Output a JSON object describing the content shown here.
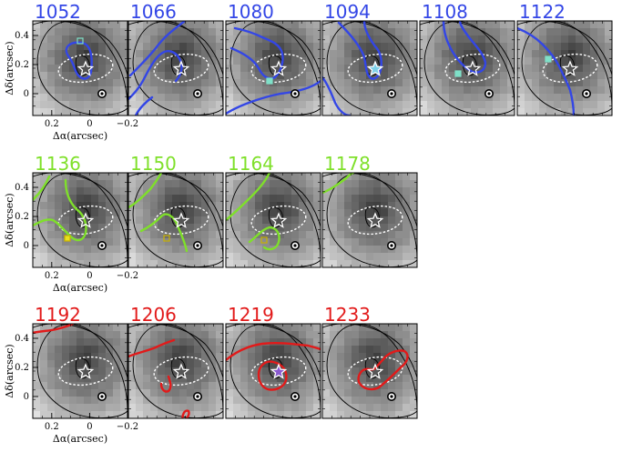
{
  "figure": {
    "x_axis_label": "Δα(arcsec)",
    "y_axis_label": "Δδ(arcsec)",
    "x_ticks": [
      "0.2",
      "0",
      "−0.2"
    ],
    "y_ticks": [
      "0",
      "0.2",
      "0.4"
    ],
    "colors": {
      "blue": "#3346e6",
      "green": "#7fe02a",
      "red": "#e21a1a",
      "star_cyan": "#7fd0e8",
      "star_violet": "#8a5ad0",
      "square_cyan": "#7fe0c8",
      "square_yellow": "#e8e020"
    }
  },
  "chart_data": [
    {
      "type": "heatmap",
      "velocity": "1052",
      "group": "blue",
      "marker": "square_cyan_open",
      "star_fill": "none"
    },
    {
      "type": "heatmap",
      "velocity": "1066",
      "group": "blue",
      "marker": "none",
      "star_fill": "none"
    },
    {
      "type": "heatmap",
      "velocity": "1080",
      "group": "blue",
      "marker": "square_cyan_filled",
      "star_fill": "none"
    },
    {
      "type": "heatmap",
      "velocity": "1094",
      "group": "blue",
      "marker": "none",
      "star_fill": "cyan"
    },
    {
      "type": "heatmap",
      "velocity": "1108",
      "group": "blue",
      "marker": "square_cyan_filled",
      "star_fill": "none"
    },
    {
      "type": "heatmap",
      "velocity": "1122",
      "group": "blue",
      "marker": "square_cyan_filled",
      "star_fill": "none"
    },
    {
      "type": "heatmap",
      "velocity": "1136",
      "group": "green",
      "marker": "square_yellow_filled",
      "star_fill": "none"
    },
    {
      "type": "heatmap",
      "velocity": "1150",
      "group": "green",
      "marker": "square_yellow_open",
      "star_fill": "none"
    },
    {
      "type": "heatmap",
      "velocity": "1164",
      "group": "green",
      "marker": "square_yellow_open",
      "star_fill": "none"
    },
    {
      "type": "heatmap",
      "velocity": "1178",
      "group": "green",
      "marker": "none",
      "star_fill": "none"
    },
    {
      "type": "heatmap",
      "velocity": "1192",
      "group": "red",
      "marker": "none",
      "star_fill": "none"
    },
    {
      "type": "heatmap",
      "velocity": "1206",
      "group": "red",
      "marker": "none",
      "star_fill": "none"
    },
    {
      "type": "heatmap",
      "velocity": "1219",
      "group": "red",
      "marker": "none",
      "star_fill": "violet"
    },
    {
      "type": "heatmap",
      "velocity": "1233",
      "group": "red",
      "marker": "none",
      "star_fill": "none"
    }
  ]
}
